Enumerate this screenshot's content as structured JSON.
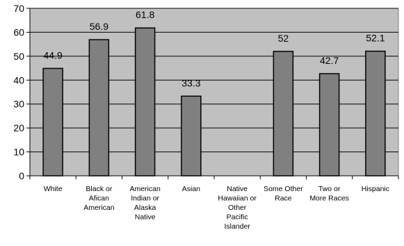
{
  "chart_data": {
    "type": "bar",
    "title": "",
    "xlabel": "",
    "ylabel": "",
    "ylim": [
      0,
      70
    ],
    "yticks": [
      0,
      10,
      20,
      30,
      40,
      50,
      60,
      70
    ],
    "grid": true,
    "legend": "none",
    "categories": [
      [
        "White"
      ],
      [
        "Black or",
        "Afican",
        "American"
      ],
      [
        "American",
        "Indian or",
        "Alaska",
        "Native"
      ],
      [
        "Asian"
      ],
      [
        "Native",
        "Hawaiian or",
        "Other",
        "Pacific",
        "Islander"
      ],
      [
        "Some Other",
        "Race"
      ],
      [
        "Two or",
        "More Races"
      ],
      [
        "Hispanic"
      ]
    ],
    "values": [
      44.9,
      56.9,
      61.8,
      33.3,
      null,
      52,
      42.7,
      52.1
    ],
    "data_labels": [
      "44.9",
      "56.9",
      "61.8",
      "33.3",
      "",
      "52",
      "42.7",
      "52.1"
    ],
    "colors": {
      "plot_background": "#c0c0c0",
      "bar_fill": "#808080",
      "bar_stroke": "#000000",
      "gridline": "#000000"
    }
  }
}
